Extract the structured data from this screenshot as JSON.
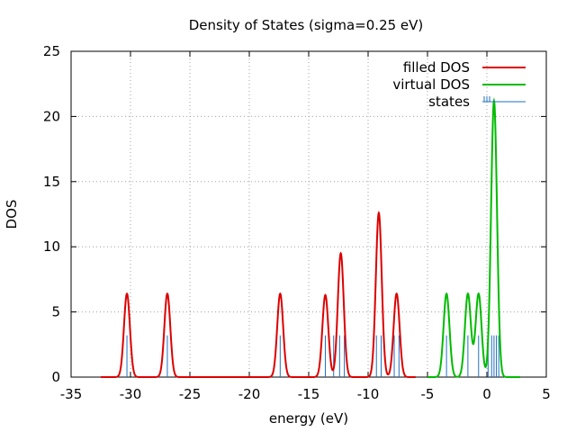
{
  "chart_data": {
    "type": "line",
    "title": "Density of States (sigma=0.25 eV)",
    "xlabel": "energy (eV)",
    "ylabel": "DOS",
    "xlim": [
      -35,
      5
    ],
    "ylim": [
      0,
      25
    ],
    "xticks": [
      -35,
      -30,
      -25,
      -20,
      -15,
      -10,
      -5,
      0,
      5
    ],
    "yticks": [
      0,
      5,
      10,
      15,
      20,
      25
    ],
    "grid": true,
    "legend_position": "top-right",
    "sigma": 0.25,
    "series": [
      {
        "name": "filled DOS",
        "color": "#dd0000",
        "peaks": [
          {
            "center": -30.3,
            "height": 6.4
          },
          {
            "center": -26.9,
            "height": 6.4
          },
          {
            "center": -17.4,
            "height": 6.4
          },
          {
            "center": -13.6,
            "height": 6.3
          },
          {
            "center": -12.3,
            "height": 9.5
          },
          {
            "center": -9.1,
            "height": 12.6
          },
          {
            "center": -7.6,
            "height": 6.4
          }
        ],
        "range": [
          -32.5,
          -6.0
        ]
      },
      {
        "name": "virtual DOS",
        "color": "#00bb00",
        "peaks": [
          {
            "center": -3.4,
            "height": 6.4
          },
          {
            "center": -1.6,
            "height": 6.4
          },
          {
            "center": -0.7,
            "height": 6.4
          },
          {
            "center": 0.6,
            "height": 21.2
          }
        ],
        "range": [
          -5.0,
          2.8
        ]
      },
      {
        "name": "states",
        "color": "#1f6fc5",
        "type": "impulses",
        "x": [
          -30.3,
          -26.9,
          -17.4,
          -13.6,
          -12.9,
          -12.4,
          -12.0,
          -9.3,
          -8.9,
          -7.8,
          -7.4,
          -3.4,
          -1.6,
          -0.7,
          0.1,
          0.4,
          0.6,
          0.8,
          1.0
        ],
        "value": 3.2
      }
    ]
  }
}
